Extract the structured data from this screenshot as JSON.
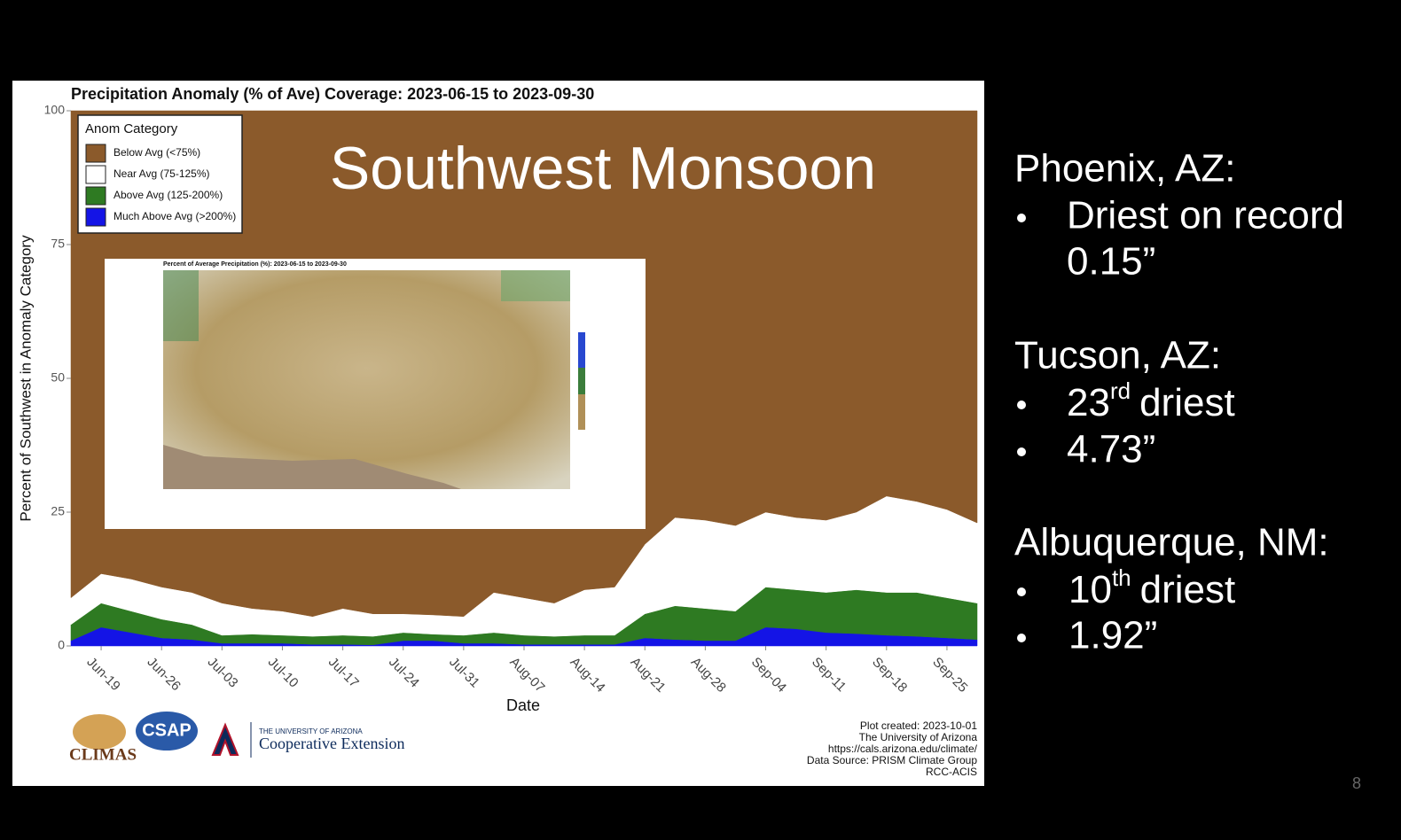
{
  "chart_data": {
    "type": "stacked-area",
    "title": "Precipitation Anomaly (% of Ave) Coverage: 2023-06-15 to 2023-09-30",
    "overlay_title": "Southwest Monsoon",
    "x_label": "Date",
    "y_label": "Percent of Southwest in Anomaly Category",
    "legend_title": "Anom Category",
    "legend_position": "upper-left",
    "categories": [
      null,
      "Jun-19",
      null,
      "Jun-26",
      null,
      "Jul-03",
      null,
      "Jul-10",
      null,
      "Jul-17",
      null,
      "Jul-24",
      null,
      "Jul-31",
      null,
      "Aug-07",
      null,
      "Aug-14",
      null,
      "Aug-21",
      null,
      "Aug-28",
      null,
      "Sep-04",
      null,
      "Sep-11",
      null,
      "Sep-18",
      null,
      "Sep-25",
      null
    ],
    "ylim": [
      0,
      100
    ],
    "yticks": [
      0,
      25,
      50,
      75,
      100
    ],
    "series": [
      {
        "name": "Below Avg (<75%)",
        "color": "#8b5a2b",
        "values": [
          91,
          86.5,
          87.5,
          89,
          90,
          92,
          93,
          93.5,
          94.5,
          93,
          94,
          94,
          94.2,
          94.5,
          90,
          91,
          92,
          89.5,
          89,
          81,
          76,
          76.5,
          77.5,
          75,
          76,
          76.5,
          75,
          72,
          73,
          74.5,
          77
        ]
      },
      {
        "name": "Near Avg (75-125%)",
        "color": "#ffffff",
        "values": [
          5,
          5.5,
          6,
          6,
          6,
          6,
          4.8,
          4.5,
          3.7,
          5,
          4.2,
          3.5,
          3.6,
          3.5,
          7.5,
          7,
          6.2,
          8.5,
          9,
          13,
          16.5,
          16.5,
          16,
          14,
          13.5,
          13.5,
          14.5,
          18,
          17,
          16.5,
          15
        ]
      },
      {
        "name": "Above Avg (125-200%)",
        "color": "#2e7a22",
        "values": [
          3,
          4.5,
          4,
          3.5,
          2.8,
          1.5,
          1.7,
          1.5,
          1.5,
          1.7,
          1.6,
          1.5,
          1.2,
          1.5,
          2,
          1.7,
          1.5,
          1.7,
          1.7,
          4.5,
          6.3,
          6,
          5.5,
          7.5,
          7.3,
          7.5,
          8.2,
          8,
          8.2,
          7.5,
          6.8
        ]
      },
      {
        "name": "Much Above Avg (>200%)",
        "color": "#1414e6",
        "values": [
          1,
          3.5,
          2.5,
          1.5,
          1.2,
          0.5,
          0.5,
          0.5,
          0.3,
          0.3,
          0.2,
          1,
          1,
          0.5,
          0.5,
          0.3,
          0.3,
          0.3,
          0.3,
          1.5,
          1.2,
          1,
          1,
          3.5,
          3.2,
          2.5,
          2.3,
          2,
          1.8,
          1.5,
          1.2
        ]
      }
    ],
    "inset_title": "Percent of Average Precipitation (%): 2023-06-15 to 2023-09-30",
    "logos": {
      "climas": "CLIMAS",
      "csap": "CSAP",
      "university": "THE UNIVERSITY OF ARIZONA",
      "extension": "Cooperative Extension"
    },
    "notes": [
      "Plot created: 2023-10-01",
      "The University of Arizona",
      "https://cals.arizona.edu/climate/",
      "Data Source: PRISM Climate Group",
      "RCC-ACIS"
    ]
  },
  "slide": {
    "cities": [
      {
        "name": "Phoenix, AZ:",
        "bullets": [
          [
            "Driest on record",
            "0.15”"
          ]
        ]
      },
      {
        "name": "Tucson, AZ:",
        "bullets": [
          {
            "number": "23",
            "suffix": "rd",
            "text": "driest"
          },
          [
            "4.73”"
          ]
        ]
      },
      {
        "name": "Albuquerque, NM:",
        "bullets": [
          {
            "number": "10",
            "suffix": "th",
            "text": "driest"
          },
          [
            "1.92”"
          ]
        ]
      }
    ],
    "page_number": "8"
  }
}
